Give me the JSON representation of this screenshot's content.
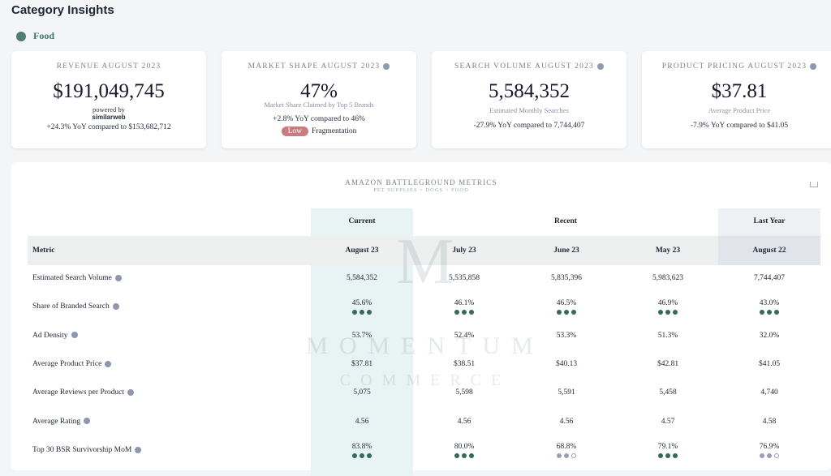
{
  "header": {
    "title": "Category Insights",
    "category": "Food"
  },
  "cards": [
    {
      "label": "REVENUE AUGUST 2023",
      "value": "$191,049,745",
      "sub": "powered by",
      "brand": "similarweb",
      "change": "+24.3% YoY compared to $153,682,712"
    },
    {
      "label": "MARKET SHAPE AUGUST 2023",
      "value": "47%",
      "sub": "Market Share Claimed by Top 5 Brands",
      "change": "+2.8% YoY compared to 46%",
      "badge": "Low",
      "badge_text": "Fragmentation"
    },
    {
      "label": "SEARCH VOLUME AUGUST 2023",
      "value": "5,584,352",
      "sub": "Estimated Monthly Searches",
      "change": "-27.9% YoY compared to 7,744,407"
    },
    {
      "label": "PRODUCT PRICING AUGUST 2023",
      "value": "$37.81",
      "sub": "Average Product Price",
      "change": "-7.9% YoY compared to $41.05"
    }
  ],
  "table": {
    "title": "AMAZON BATTLEGROUND METRICS",
    "subtitle": "PET SUPPLIES > DOGS > FOOD",
    "groups": [
      "Current",
      "Recent",
      "Last Year"
    ],
    "columns": [
      "Metric",
      "August 23",
      "July 23",
      "June 23",
      "May 23",
      "August 22"
    ],
    "watermark": [
      "M",
      "MOMENTUM",
      "COMMERCE"
    ],
    "rows": [
      {
        "label": "Estimated Search Volume",
        "cells": [
          "5,584,352",
          "5,535,858",
          "5,835,396",
          "5,983,623",
          "7,744,407"
        ]
      },
      {
        "label": "Share of Branded Search",
        "cells": [
          "45.6%",
          "46.1%",
          "46.5%",
          "46.9%",
          "43.0%"
        ],
        "dots": [
          3,
          3,
          3,
          3,
          3
        ]
      },
      {
        "label": "Ad Density",
        "cells": [
          "53.7%",
          "52.4%",
          "53.3%",
          "51.3%",
          "32.0%"
        ]
      },
      {
        "label": "Average Product Price",
        "cells": [
          "$37.81",
          "$38.51",
          "$40.13",
          "$42.81",
          "$41.05"
        ]
      },
      {
        "label": "Average Reviews per Product",
        "cells": [
          "5,075",
          "5,598",
          "5,591",
          "5,458",
          "4,740"
        ]
      },
      {
        "label": "Average Rating",
        "cells": [
          "4.56",
          "4.56",
          "4.56",
          "4.57",
          "4.58"
        ]
      },
      {
        "label": "Top 30 BSR Survivorship MoM",
        "cells": [
          "83.8%",
          "80.0%",
          "68.8%",
          "79.1%",
          "76.9%"
        ],
        "dots": [
          3,
          3,
          2,
          3,
          2
        ]
      }
    ]
  }
}
